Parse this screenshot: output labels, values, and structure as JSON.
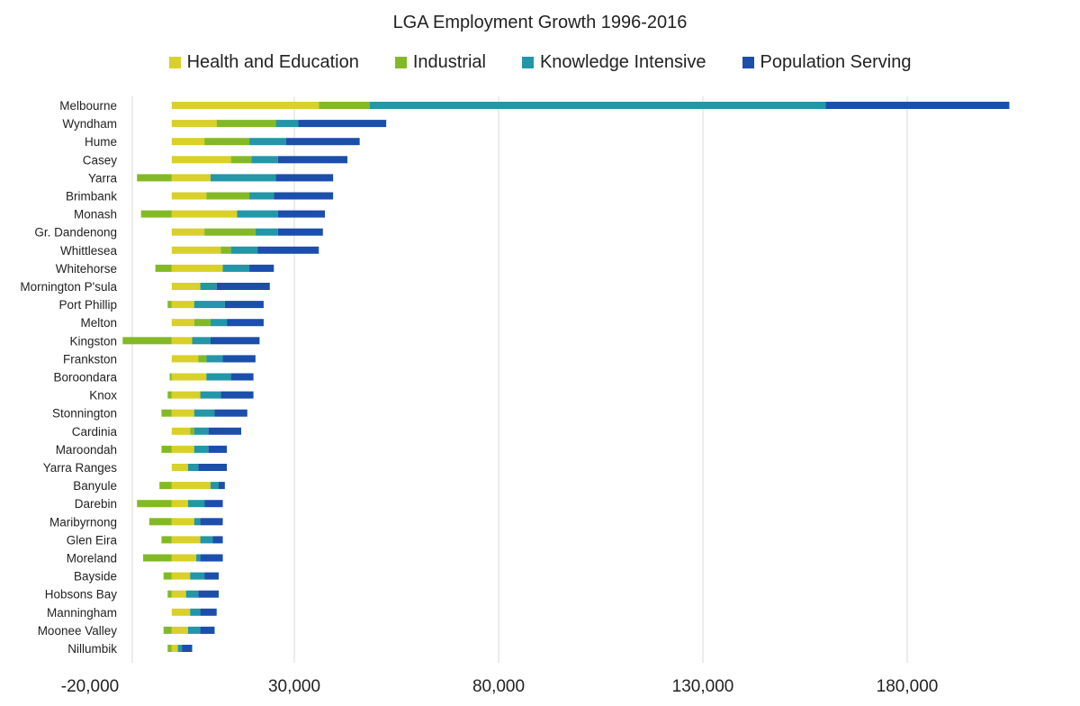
{
  "chart_data": {
    "type": "bar",
    "orientation": "horizontal",
    "stacked": true,
    "title": "LGA Employment Growth 1996-2016",
    "xlabel": "",
    "ylabel": "",
    "xlim": [
      -20000,
      215000
    ],
    "x_ticks": [
      -20000,
      30000,
      80000,
      130000,
      180000
    ],
    "x_tick_labels": [
      "-20,000",
      "30,000",
      "80,000",
      "130,000",
      "180,000"
    ],
    "grid": true,
    "legend_position": "top",
    "categories": [
      "Melbourne",
      "Wyndham",
      "Hume",
      "Casey",
      "Yarra",
      "Brimbank",
      "Monash",
      "Gr. Dandenong",
      "Whittlesea",
      "Whitehorse",
      "Mornington P'sula",
      "Port Phillip",
      "Melton",
      "Kingston",
      "Frankston",
      "Boroondara",
      "Knox",
      "Stonnington",
      "Cardinia",
      "Maroondah",
      "Yarra Ranges",
      "Banyule",
      "Darebin",
      "Maribyrnong",
      "Glen Eira",
      "Moreland",
      "Bayside",
      "Hobsons Bay",
      "Manningham",
      "Moonee Valley",
      "Nillumbik"
    ],
    "series": [
      {
        "name": "Health and Education",
        "color": "#d9d02a",
        "values": [
          36000,
          11000,
          8000,
          14500,
          9500,
          8500,
          16000,
          8000,
          12000,
          12500,
          7000,
          5500,
          5500,
          5000,
          6500,
          8500,
          7000,
          5500,
          4500,
          5500,
          4000,
          9500,
          4000,
          5500,
          7000,
          6000,
          4500,
          3500,
          4500,
          4000,
          1500
        ]
      },
      {
        "name": "Industrial",
        "color": "#84b926",
        "values": [
          12500,
          14500,
          11000,
          5000,
          -8500,
          10500,
          -7500,
          12500,
          2500,
          -4000,
          0,
          -1000,
          4000,
          -12000,
          2000,
          -500,
          -1000,
          -2500,
          1000,
          -2500,
          0,
          -3000,
          -8500,
          -5500,
          -2500,
          -7000,
          -2000,
          -1000,
          0,
          -2000,
          -1000
        ]
      },
      {
        "name": "Knowledge Intensive",
        "color": "#2396a8",
        "values": [
          111500,
          5500,
          9000,
          6500,
          16000,
          6000,
          10000,
          5500,
          6500,
          6500,
          4000,
          7500,
          4000,
          4500,
          4000,
          6000,
          5000,
          5000,
          3500,
          3500,
          2500,
          2000,
          4000,
          1500,
          3000,
          1000,
          3500,
          3000,
          2500,
          3000,
          1000
        ]
      },
      {
        "name": "Population Serving",
        "color": "#1c4eab",
        "values": [
          45000,
          21500,
          18000,
          17000,
          14000,
          14500,
          11500,
          11000,
          15000,
          6000,
          13000,
          9500,
          9000,
          12000,
          8000,
          5500,
          8000,
          8000,
          8000,
          4500,
          7000,
          1500,
          4500,
          5500,
          2500,
          5500,
          3500,
          5000,
          4000,
          3500,
          2500
        ]
      }
    ]
  }
}
